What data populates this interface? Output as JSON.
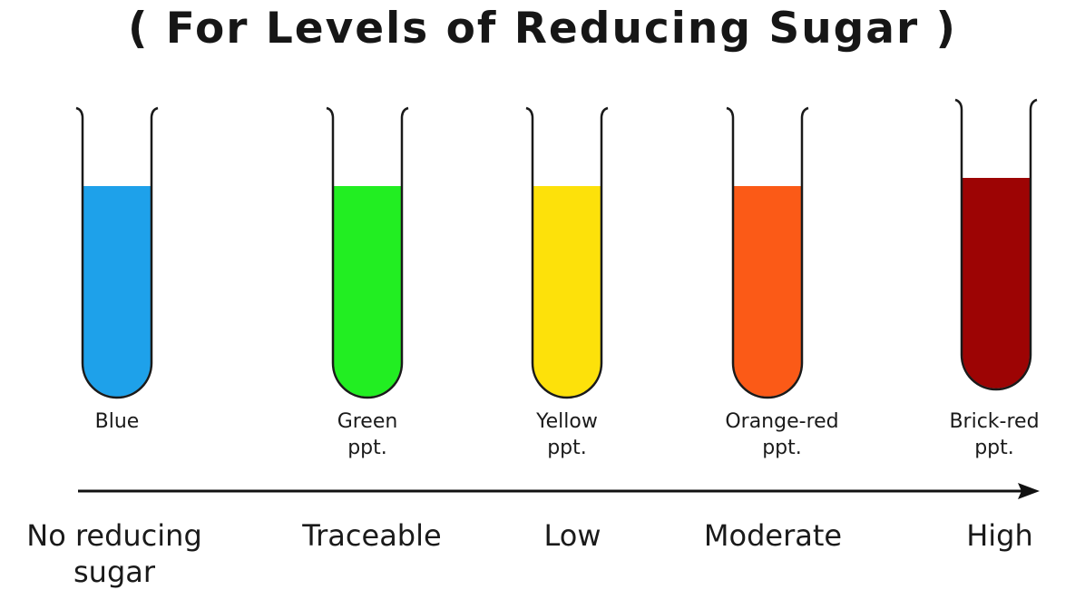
{
  "title": "( For Levels of Reducing Sugar )",
  "tubes": [
    {
      "line1": "Blue",
      "line2": "",
      "color": "#1ea1ea"
    },
    {
      "line1": "Green",
      "line2": "ppt.",
      "color": "#22ee22"
    },
    {
      "line1": "Yellow",
      "line2": "ppt.",
      "color": "#fde10a"
    },
    {
      "line1": "Orange-red",
      "line2": "ppt.",
      "color": "#fb5a17"
    },
    {
      "line1": "Brick-red",
      "line2": "ppt.",
      "color": "#9d0404"
    }
  ],
  "levels": [
    {
      "line1": "No reducing",
      "line2": "sugar"
    },
    {
      "line1": "Traceable",
      "line2": ""
    },
    {
      "line1": "Low",
      "line2": ""
    },
    {
      "line1": "Moderate",
      "line2": ""
    },
    {
      "line1": "High",
      "line2": ""
    }
  ],
  "arrow_color": "#111111"
}
